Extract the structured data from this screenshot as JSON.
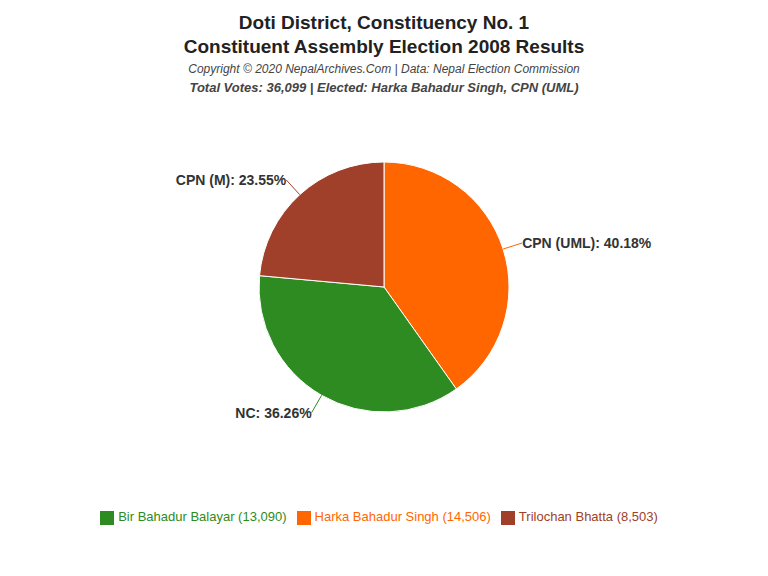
{
  "chart_data": {
    "type": "pie",
    "title": "Doti District, Constituency No. 1",
    "subtitle": "Constituent Assembly Election 2008 Results",
    "annotations": [
      "Copyright © 2020 NepalArchives.Com | Data: Nepal Election Commission",
      "Total Votes: 36,099 | Elected: Harka Bahadur Singh, CPN (UML)"
    ],
    "categories": [
      "Harka Bahadur Singh (14,506)",
      "Bir Bahadur Balayar (13,090)",
      "Trilochan Bhatta (8,503)"
    ],
    "values": [
      40.18,
      36.26,
      23.55
    ],
    "value_labels": [
      "CPN (UML): 40.18%",
      "NC: 36.26%",
      "CPN (M): 23.55%"
    ],
    "colors": [
      "#FF6600",
      "#2E8B22",
      "#A0402A"
    ],
    "data_labels": true,
    "legend": "bottom"
  }
}
